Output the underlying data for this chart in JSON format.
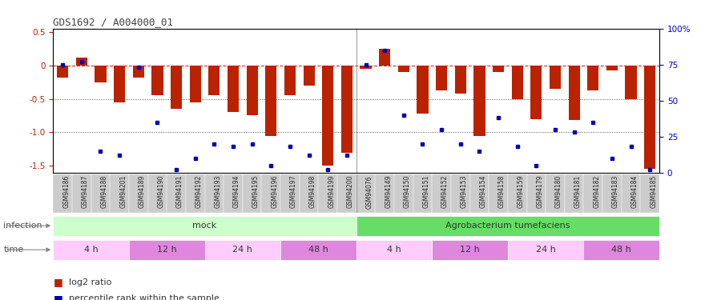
{
  "title": "GDS1692 / A004000_01",
  "samples": [
    "GSM94186",
    "GSM94187",
    "GSM94188",
    "GSM94201",
    "GSM94189",
    "GSM94190",
    "GSM94191",
    "GSM94192",
    "GSM94193",
    "GSM94194",
    "GSM94195",
    "GSM94196",
    "GSM94197",
    "GSM94198",
    "GSM94199",
    "GSM94200",
    "GSM94076",
    "GSM94149",
    "GSM94150",
    "GSM94151",
    "GSM94152",
    "GSM94153",
    "GSM94154",
    "GSM94158",
    "GSM94159",
    "GSM94179",
    "GSM94180",
    "GSM94181",
    "GSM94182",
    "GSM94183",
    "GSM94184",
    "GSM94185"
  ],
  "log2_ratio": [
    -0.18,
    0.12,
    -0.25,
    -0.55,
    -0.18,
    -0.45,
    -0.65,
    -0.55,
    -0.45,
    -0.7,
    -0.75,
    -1.05,
    -0.45,
    -0.3,
    -1.5,
    -1.3,
    -0.05,
    0.25,
    -0.1,
    -0.72,
    -0.38,
    -0.42,
    -1.05,
    -0.1,
    -0.5,
    -0.8,
    -0.35,
    -0.82,
    -0.38,
    -0.08,
    -0.5,
    -1.55
  ],
  "percentile_rank": [
    75,
    77,
    15,
    12,
    73,
    35,
    2,
    10,
    20,
    18,
    20,
    5,
    18,
    12,
    2,
    12,
    75,
    85,
    40,
    20,
    30,
    20,
    15,
    38,
    18,
    5,
    30,
    28,
    35,
    10,
    18,
    2
  ],
  "ylim": [
    -1.6,
    0.55
  ],
  "yticks_left": [
    -1.5,
    -1.0,
    -0.5,
    0.0,
    0.5
  ],
  "yticks_right": [
    0,
    25,
    50,
    75,
    100
  ],
  "infection_groups": [
    {
      "label": "mock",
      "start": 0,
      "end": 16,
      "color": "#ccffcc"
    },
    {
      "label": "Agrobacterium tumefaciens",
      "start": 16,
      "end": 32,
      "color": "#66dd66"
    }
  ],
  "time_groups": [
    {
      "label": "4 h",
      "start": 0,
      "end": 4,
      "color": "#ffccff"
    },
    {
      "label": "12 h",
      "start": 4,
      "end": 8,
      "color": "#dd88dd"
    },
    {
      "label": "24 h",
      "start": 8,
      "end": 12,
      "color": "#ffccff"
    },
    {
      "label": "48 h",
      "start": 12,
      "end": 16,
      "color": "#dd88dd"
    },
    {
      "label": "4 h",
      "start": 16,
      "end": 20,
      "color": "#ffccff"
    },
    {
      "label": "12 h",
      "start": 20,
      "end": 24,
      "color": "#dd88dd"
    },
    {
      "label": "24 h",
      "start": 24,
      "end": 28,
      "color": "#ffccff"
    },
    {
      "label": "48 h",
      "start": 28,
      "end": 32,
      "color": "#dd88dd"
    }
  ],
  "bar_color": "#bb2200",
  "dot_color": "#0000bb",
  "hline_color": "#cc3333",
  "dotted_line_color": "#333333",
  "label_color": "#555555",
  "background_color": "#ffffff",
  "tick_label_bg": "#cccccc"
}
